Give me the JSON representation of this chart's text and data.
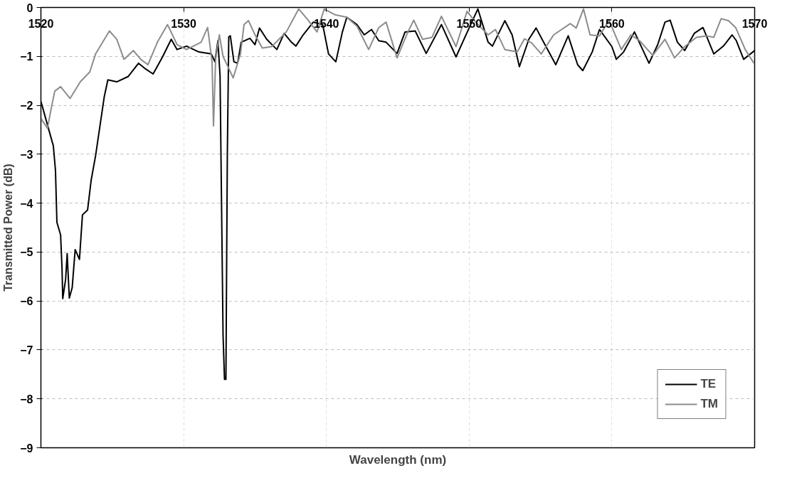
{
  "chart_data": {
    "type": "line",
    "xlabel": "Wavelength (nm)",
    "ylabel": "Transmitted Power (dB)",
    "xlim": [
      1520,
      1570
    ],
    "ylim": [
      -9,
      0
    ],
    "xticks": [
      1520,
      1530,
      1540,
      1550,
      1560,
      1570
    ],
    "yticks": [
      0,
      -1,
      -2,
      -3,
      -4,
      -5,
      -6,
      -7,
      -8,
      -9
    ],
    "grid": true,
    "legend": "bottom right",
    "line_style": "solid",
    "marker": "none",
    "series": [
      {
        "name": "TE",
        "color": "#000000",
        "x": [
          1520.0,
          1520.87,
          1521.02,
          1521.12,
          1521.38,
          1521.48,
          1521.53,
          1521.73,
          1521.84,
          1521.89,
          1521.99,
          1522.19,
          1522.4,
          1522.7,
          1522.91,
          1523.27,
          1523.52,
          1523.83,
          1524.44,
          1524.69,
          1525.31,
          1526.12,
          1526.84,
          1527.35,
          1527.86,
          1528.52,
          1529.13,
          1529.54,
          1530.2,
          1531.07,
          1531.94,
          1532.19,
          1532.4,
          1532.55,
          1532.76,
          1532.86,
          1532.96,
          1533.06,
          1533.16,
          1533.27,
          1533.52,
          1533.78,
          1534.03,
          1534.64,
          1535.0,
          1535.31,
          1535.82,
          1536.53,
          1537.04,
          1537.55,
          1537.86,
          1538.37,
          1539.08,
          1539.74,
          1540.15,
          1540.66,
          1541.12,
          1541.43,
          1542.14,
          1542.65,
          1543.16,
          1543.67,
          1544.18,
          1544.95,
          1545.51,
          1546.22,
          1546.99,
          1548.06,
          1549.08,
          1549.95,
          1550.61,
          1551.33,
          1551.63,
          1552.5,
          1553.01,
          1553.52,
          1554.18,
          1554.69,
          1555.31,
          1556.07,
          1556.94,
          1557.6,
          1557.96,
          1558.62,
          1559.13,
          1560.0,
          1560.31,
          1560.82,
          1561.58,
          1562.6,
          1563.21,
          1563.72,
          1564.08,
          1564.59,
          1565.1,
          1565.77,
          1566.38,
          1567.14,
          1567.81,
          1568.42,
          1568.72,
          1569.23,
          1570.0
        ],
        "values": [
          -1.92,
          -2.83,
          -3.33,
          -4.39,
          -4.65,
          -5.35,
          -5.95,
          -5.56,
          -5.03,
          -5.35,
          -5.94,
          -5.73,
          -4.95,
          -5.15,
          -4.24,
          -4.14,
          -3.53,
          -3.03,
          -1.82,
          -1.48,
          -1.52,
          -1.41,
          -1.14,
          -1.26,
          -1.36,
          -1.01,
          -0.65,
          -0.86,
          -0.79,
          -0.91,
          -0.95,
          -1.11,
          -0.68,
          -1.4,
          -6.7,
          -7.6,
          -7.6,
          -3.0,
          -0.6,
          -0.58,
          -1.11,
          -1.14,
          -0.71,
          -0.63,
          -0.76,
          -0.42,
          -0.65,
          -0.86,
          -0.53,
          -0.71,
          -0.79,
          -0.56,
          -0.3,
          -0.35,
          -0.95,
          -1.11,
          -0.5,
          -0.2,
          -0.35,
          -0.56,
          -0.45,
          -0.68,
          -0.71,
          -0.94,
          -0.5,
          -0.48,
          -0.94,
          -0.35,
          -1.01,
          -0.45,
          -0.03,
          -0.71,
          -0.79,
          -0.27,
          -0.56,
          -1.21,
          -0.65,
          -0.42,
          -0.76,
          -1.17,
          -0.58,
          -1.17,
          -1.29,
          -0.91,
          -0.45,
          -0.8,
          -1.06,
          -0.91,
          -0.5,
          -1.14,
          -0.76,
          -0.3,
          -0.26,
          -0.71,
          -0.88,
          -0.53,
          -0.41,
          -0.95,
          -0.79,
          -0.56,
          -0.68,
          -1.06,
          -0.88
        ]
      },
      {
        "name": "TM",
        "color": "#8c8c8c",
        "x": [
          1520.0,
          1520.46,
          1520.71,
          1520.97,
          1521.38,
          1522.04,
          1522.76,
          1523.42,
          1523.83,
          1524.8,
          1525.31,
          1525.82,
          1526.48,
          1526.99,
          1527.5,
          1528.16,
          1528.87,
          1529.54,
          1530.2,
          1531.22,
          1531.68,
          1531.99,
          1532.09,
          1532.24,
          1532.5,
          1532.76,
          1533.47,
          1533.98,
          1534.23,
          1534.54,
          1535.0,
          1535.51,
          1536.17,
          1537.19,
          1538.06,
          1538.72,
          1539.34,
          1539.85,
          1540.61,
          1541.43,
          1542.14,
          1542.96,
          1543.67,
          1544.18,
          1544.95,
          1545.71,
          1546.12,
          1546.73,
          1547.4,
          1548.06,
          1549.08,
          1549.85,
          1550.46,
          1551.33,
          1551.84,
          1552.5,
          1553.37,
          1553.88,
          1554.39,
          1555.05,
          1555.92,
          1557.09,
          1557.5,
          1558.01,
          1558.47,
          1559.13,
          1559.8,
          1560.66,
          1561.33,
          1561.94,
          1562.86,
          1563.72,
          1564.39,
          1565.1,
          1565.92,
          1566.63,
          1567.14,
          1567.65,
          1568.16,
          1568.67,
          1569.34,
          1569.95
        ],
        "values": [
          -2.27,
          -2.47,
          -2.08,
          -1.71,
          -1.62,
          -1.86,
          -1.52,
          -1.32,
          -0.95,
          -0.48,
          -0.65,
          -1.06,
          -0.88,
          -1.06,
          -1.17,
          -0.71,
          -0.35,
          -0.76,
          -0.86,
          -0.71,
          -0.41,
          -1.11,
          -2.42,
          -1.06,
          -0.56,
          -1.0,
          -1.44,
          -0.95,
          -0.35,
          -0.27,
          -0.56,
          -0.83,
          -0.8,
          -0.5,
          -0.03,
          -0.26,
          -0.5,
          -0.03,
          -0.15,
          -0.2,
          -0.38,
          -0.86,
          -0.41,
          -0.3,
          -1.03,
          -0.5,
          -0.26,
          -0.65,
          -0.61,
          -0.18,
          -0.8,
          -0.08,
          -0.3,
          -0.56,
          -0.45,
          -0.86,
          -0.91,
          -0.64,
          -0.73,
          -0.95,
          -0.56,
          -0.33,
          -0.42,
          -0.03,
          -0.56,
          -0.58,
          -0.26,
          -0.86,
          -0.56,
          -0.68,
          -0.98,
          -0.65,
          -1.03,
          -0.8,
          -0.61,
          -0.58,
          -0.61,
          -0.23,
          -0.27,
          -0.41,
          -0.86,
          -1.14
        ]
      }
    ]
  }
}
